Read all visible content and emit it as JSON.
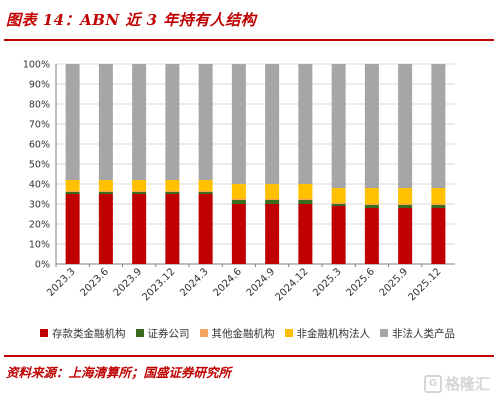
{
  "title": "图表 14：ABN 近 3 年持有人结构",
  "source": "资料来源：上海清算所；国盛证券研究所",
  "watermark": "格隆汇",
  "chart_data": {
    "type": "bar",
    "stacked": true,
    "categories": [
      "2023.3",
      "2023.6",
      "2023.9",
      "2023.12",
      "2024.3",
      "2024.6",
      "2024.9",
      "2024.12",
      "2025.3",
      "2025.6",
      "2025.9",
      "2025.12"
    ],
    "ylim": [
      0,
      100
    ],
    "yticks": [
      "0%",
      "10%",
      "20%",
      "30%",
      "40%",
      "50%",
      "60%",
      "70%",
      "80%",
      "90%",
      "100%"
    ],
    "grid": true,
    "legend_position": "bottom",
    "series": [
      {
        "name": "存款类金融机构",
        "color": "#c00000",
        "values": [
          35,
          35,
          35,
          35,
          35,
          30,
          30,
          30,
          29,
          28,
          28,
          28
        ]
      },
      {
        "name": "证券公司",
        "color": "#3a6b1f",
        "values": [
          1,
          1,
          1,
          1,
          1,
          2,
          2,
          2,
          1,
          1.5,
          1.5,
          1.5
        ]
      },
      {
        "name": "其他金融机构",
        "color": "#f4a460",
        "values": [
          0.5,
          0.5,
          0.5,
          0.5,
          0.5,
          0.5,
          0.5,
          0.5,
          0.5,
          0.5,
          0.5,
          0.5
        ]
      },
      {
        "name": "非金融机构法人",
        "color": "#ffc000",
        "values": [
          5.5,
          5.5,
          5.5,
          5.5,
          5.5,
          7.5,
          7.5,
          7.5,
          7.5,
          8,
          8,
          8
        ]
      },
      {
        "name": "非法人类产品",
        "color": "#a6a6a6",
        "values": [
          58,
          58,
          58,
          58,
          58,
          60,
          60,
          60,
          62,
          62,
          62,
          62
        ]
      }
    ]
  }
}
